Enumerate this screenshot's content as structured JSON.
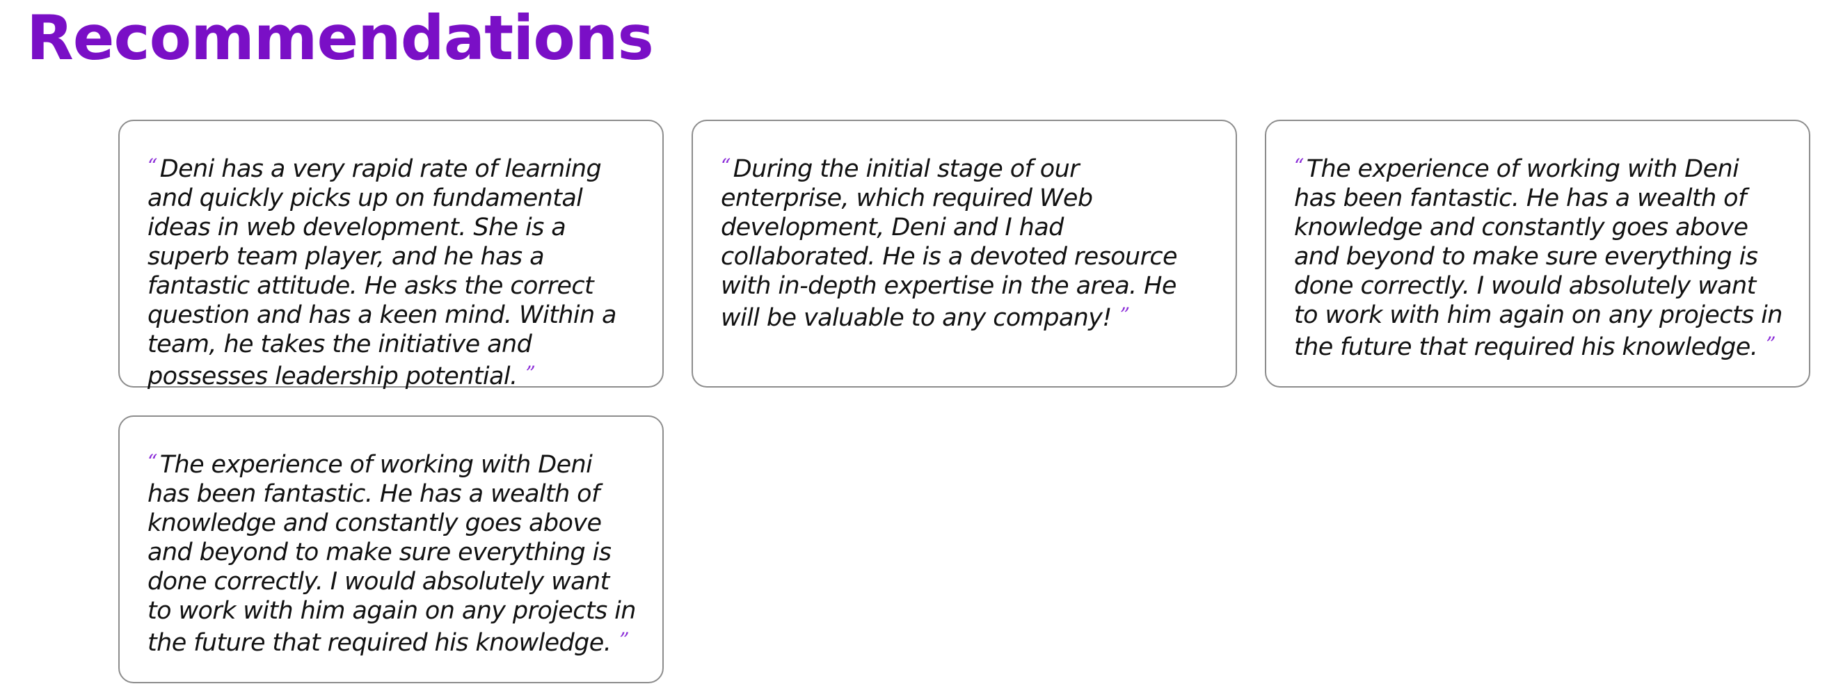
{
  "page": {
    "title": "Recommendations"
  },
  "theme": {
    "accent_color": "#7a0fc6",
    "quote_mark_color": "#8a2bd8",
    "card_border_color": "#8c8c8c",
    "text_color": "#111111"
  },
  "quote_marks": {
    "open": "“",
    "close": "”"
  },
  "recommendations": [
    {
      "text": "Deni has a very rapid rate of learning and quickly picks up on fundamental ideas in web development. She is a superb team player, and he has a fantastic attitude. He asks the correct question and has a keen mind. Within a team, he takes the initiative and possesses leadership potential."
    },
    {
      "text": "During the initial stage of our enterprise, which required Web development, Deni and I had collaborated. He is a devoted resource with in-depth expertise in the area. He will be valuable to any company!"
    },
    {
      "text": "The experience of working with Deni has been fantastic. He has a wealth of knowledge and constantly goes above and beyond to make sure everything is done correctly. I would absolutely want to work with him again on any projects in the future that required his knowledge."
    },
    {
      "text": "The experience of working with Deni has been fantastic. He has a wealth of knowledge and constantly goes above and beyond to make sure everything is done correctly. I would absolutely want to work with him again on any projects in the future that required his knowledge."
    }
  ]
}
